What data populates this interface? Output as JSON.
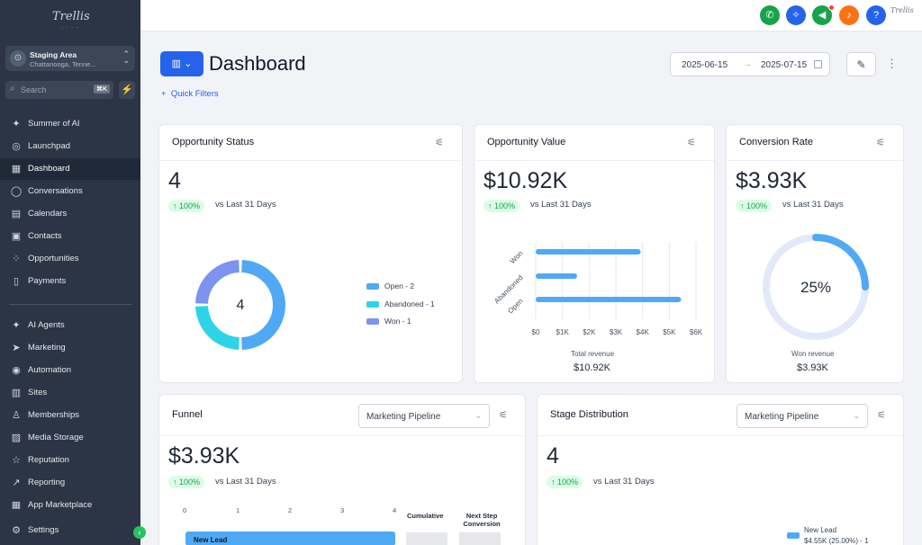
{
  "app": {
    "logo_text": "Trellis",
    "location_name": "Staging Area",
    "location_sub": "Chattanooga, Tenne...",
    "search_placeholder": "Search",
    "search_shortcut": "⌘K"
  },
  "sidebar": {
    "items": [
      {
        "label": "Summer of AI",
        "icon": "sparkle-icon"
      },
      {
        "label": "Launchpad",
        "icon": "rocket-icon"
      },
      {
        "label": "Dashboard",
        "icon": "grid-icon"
      },
      {
        "label": "Conversations",
        "icon": "chat-icon"
      },
      {
        "label": "Calendars",
        "icon": "calendar-icon"
      },
      {
        "label": "Contacts",
        "icon": "contacts-icon"
      },
      {
        "label": "Opportunities",
        "icon": "opportunities-icon"
      },
      {
        "label": "Payments",
        "icon": "payments-icon"
      },
      {
        "label": "AI Agents",
        "icon": "sparkle-icon"
      },
      {
        "label": "Marketing",
        "icon": "send-icon"
      },
      {
        "label": "Automation",
        "icon": "automation-icon"
      },
      {
        "label": "Sites",
        "icon": "sites-icon"
      },
      {
        "label": "Memberships",
        "icon": "badge-icon"
      },
      {
        "label": "Media Storage",
        "icon": "image-icon"
      },
      {
        "label": "Reputation",
        "icon": "star-icon"
      },
      {
        "label": "Reporting",
        "icon": "chart-icon"
      },
      {
        "label": "App Marketplace",
        "icon": "apps-icon"
      },
      {
        "label": "Settings",
        "icon": "gear-icon"
      }
    ]
  },
  "header": {
    "title": "Dashboard",
    "quick_filters": "Quick Filters",
    "date_from": "2025-06-15",
    "date_to": "2025-07-15"
  },
  "cards": {
    "opportunity_status": {
      "title": "Opportunity Status",
      "value": "4",
      "badge": "↑ 100%",
      "compare": "vs Last 31 Days",
      "donut_center": "4"
    },
    "opportunity_value": {
      "title": "Opportunity Value",
      "value": "$10.92K",
      "badge": "↑ 100%",
      "compare": "vs Last 31 Days",
      "footer_label": "Total revenue",
      "footer_value": "$10.92K"
    },
    "conversion_rate": {
      "title": "Conversion Rate",
      "value": "$3.93K",
      "badge": "↑ 100%",
      "compare": "vs Last 31 Days",
      "gauge_label": "25%",
      "footer_label": "Won revenue",
      "footer_value": "$3.93K"
    },
    "funnel": {
      "title": "Funnel",
      "pipeline": "Marketing Pipeline",
      "value": "$3.93K",
      "badge": "↑ 100%",
      "compare": "vs Last 31 Days",
      "axis": [
        "0",
        "1",
        "2",
        "3",
        "4"
      ],
      "col_cumulative": "Cumulative",
      "col_next_step": "Next Step Conversion",
      "first_stage": "New Lead"
    },
    "stage_distribution": {
      "title": "Stage Distribution",
      "pipeline": "Marketing Pipeline",
      "value": "4",
      "badge": "↑ 100%",
      "compare": "vs Last 31 Days",
      "legend_name": "New Lead",
      "legend_detail": "$4.55K (25.00%) - 1"
    }
  },
  "chart_data": [
    {
      "type": "pie",
      "title": "Opportunity Status",
      "categories": [
        "Open - 2",
        "Abandoned - 1",
        "Won - 1"
      ],
      "values": [
        2,
        1,
        1
      ],
      "colors": [
        "#4fa9f5",
        "#2dd4e8",
        "#7c93f0"
      ]
    },
    {
      "type": "bar",
      "title": "Opportunity Value",
      "categories": [
        "Won",
        "Abandoned",
        "Open"
      ],
      "values": [
        3930,
        1550,
        5440
      ],
      "x_ticks": [
        "$0",
        "$1K",
        "$2K",
        "$3K",
        "$4K",
        "$5K",
        "$6K"
      ],
      "xlim": [
        0,
        6000
      ]
    },
    {
      "type": "pie",
      "title": "Conversion Rate",
      "categories": [
        "Won"
      ],
      "values": [
        25
      ]
    }
  ],
  "colors": {
    "accent": "#2563eb",
    "sidebar": "#2b3545",
    "bar": "#4fa9f5",
    "positive": "#16a34a"
  }
}
